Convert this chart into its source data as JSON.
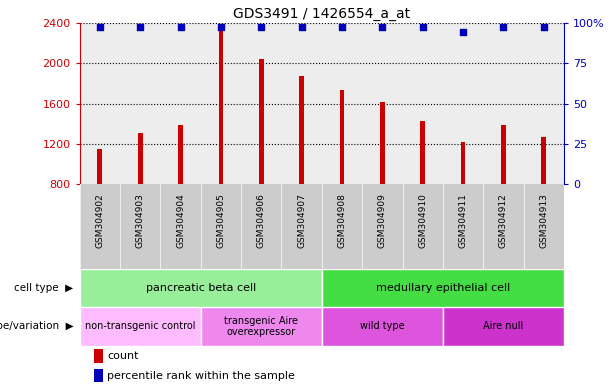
{
  "title": "GDS3491 / 1426554_a_at",
  "samples": [
    "GSM304902",
    "GSM304903",
    "GSM304904",
    "GSM304905",
    "GSM304906",
    "GSM304907",
    "GSM304908",
    "GSM304909",
    "GSM304910",
    "GSM304911",
    "GSM304912",
    "GSM304913"
  ],
  "counts": [
    1150,
    1310,
    1390,
    2390,
    2040,
    1870,
    1740,
    1620,
    1430,
    1220,
    1390,
    1265
  ],
  "percentile_values": [
    2360,
    2360,
    2360,
    2360,
    2360,
    2360,
    2360,
    2360,
    2360,
    2310,
    2360,
    2360
  ],
  "bar_color": "#cc0000",
  "dot_color": "#0000bb",
  "ylim_left": [
    800,
    2400
  ],
  "yticks_left": [
    800,
    1200,
    1600,
    2000,
    2400
  ],
  "yticks_right": [
    0,
    25,
    50,
    75,
    100
  ],
  "cell_type_groups": [
    {
      "label": "pancreatic beta cell",
      "start": 0,
      "end": 5,
      "color": "#99ee99"
    },
    {
      "label": "medullary epithelial cell",
      "start": 6,
      "end": 11,
      "color": "#44dd44"
    }
  ],
  "genotype_groups": [
    {
      "label": "non-transgenic control",
      "start": 0,
      "end": 2,
      "color": "#ffbbff"
    },
    {
      "label": "transgenic Aire\noverexpressor",
      "start": 3,
      "end": 5,
      "color": "#ee88ee"
    },
    {
      "label": "wild type",
      "start": 6,
      "end": 8,
      "color": "#dd55dd"
    },
    {
      "label": "Aire null",
      "start": 9,
      "end": 11,
      "color": "#cc33cc"
    }
  ],
  "xtick_bg": "#cccccc",
  "plot_bg": "#ffffff",
  "bar_width": 0.12,
  "dot_size": 18
}
